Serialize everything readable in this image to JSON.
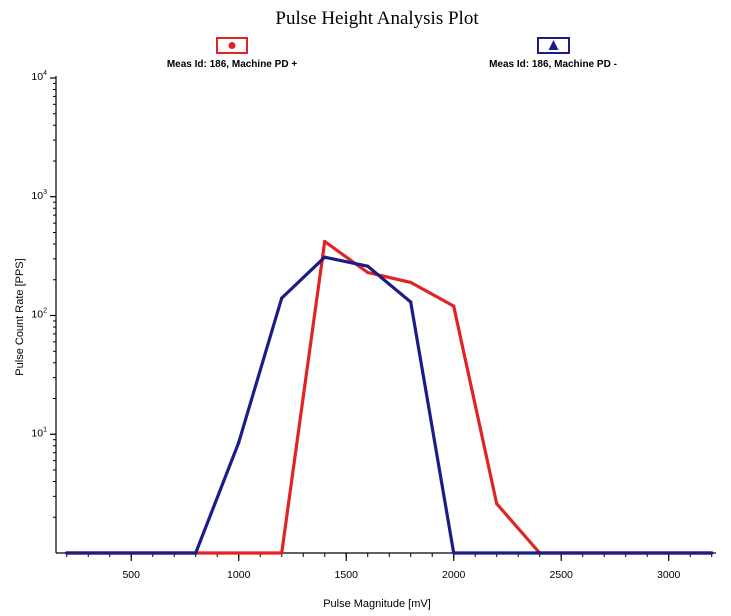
{
  "chart_data": {
    "type": "line",
    "title": "Pulse Height Analysis Plot",
    "xlabel": "Pulse Magnitude [mV]",
    "ylabel": "Pulse Count Rate [PPS]",
    "x_scale": "linear",
    "y_scale": "log",
    "xlim": [
      150,
      3220
    ],
    "ylim": [
      1,
      10000
    ],
    "x_ticks": [
      500,
      1000,
      1500,
      2000,
      2500,
      3000
    ],
    "y_ticks": [
      {
        "value": 10,
        "base": "10",
        "exp": "1"
      },
      {
        "value": 100,
        "base": "10",
        "exp": "2"
      },
      {
        "value": 1000,
        "base": "10",
        "exp": "3"
      },
      {
        "value": 10000,
        "base": "10",
        "exp": "4"
      }
    ],
    "grid": false,
    "legend_position": "top",
    "series": [
      {
        "name": "Meas Id: 186, Machine PD +",
        "color": "#e02424",
        "marker": "circle",
        "x": [
          200,
          400,
          600,
          800,
          1000,
          1200,
          1400,
          1600,
          1800,
          2000,
          2200,
          2400,
          2600,
          2800,
          3000,
          3200
        ],
        "y": [
          1,
          1,
          1,
          1,
          1,
          1,
          420,
          230,
          190,
          120,
          2.6,
          1,
          1,
          1,
          1,
          1
        ]
      },
      {
        "name": "Meas Id: 186, Machine PD -",
        "color": "#1c1c86",
        "marker": "triangle",
        "x": [
          200,
          400,
          600,
          800,
          1000,
          1200,
          1400,
          1600,
          1800,
          2000,
          2200,
          2400,
          2600,
          2800,
          3000,
          3200
        ],
        "y": [
          1,
          1,
          1,
          1,
          8.5,
          140,
          310,
          260,
          130,
          1,
          1,
          1,
          1,
          1,
          1,
          1
        ]
      }
    ]
  }
}
